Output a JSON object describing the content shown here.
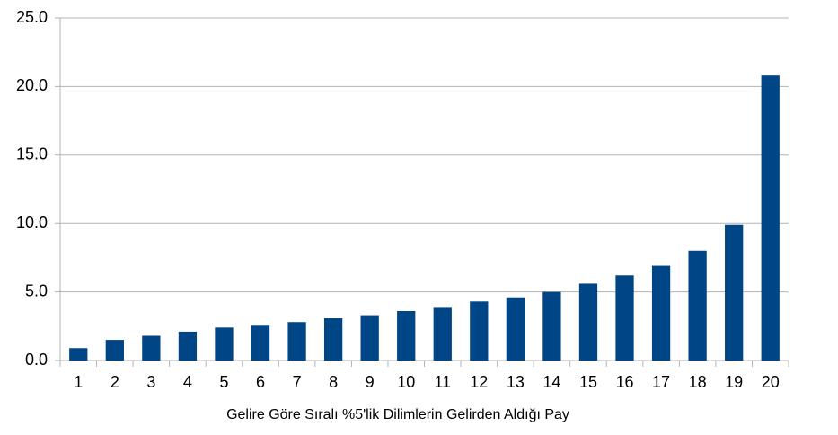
{
  "chart_data": {
    "type": "bar",
    "x_label": "Gelire Göre Sıralı %5'lik Dilimlerin Gelirden Aldığı Pay",
    "categories": [
      "1",
      "2",
      "3",
      "4",
      "5",
      "6",
      "7",
      "8",
      "9",
      "10",
      "11",
      "12",
      "13",
      "14",
      "15",
      "16",
      "17",
      "18",
      "19",
      "20"
    ],
    "values": [
      0.9,
      1.5,
      1.8,
      2.1,
      2.4,
      2.6,
      2.8,
      3.1,
      3.3,
      3.6,
      3.9,
      4.3,
      4.6,
      5.0,
      5.6,
      6.2,
      6.9,
      8.0,
      9.9,
      20.8
    ],
    "color": "#004586",
    "ylim": [
      0,
      25
    ],
    "yticks": [
      {
        "value": 0,
        "label": "0.0"
      },
      {
        "value": 5,
        "label": "5.0"
      },
      {
        "value": 10,
        "label": "10.0"
      },
      {
        "value": 15,
        "label": "15.0"
      },
      {
        "value": 20,
        "label": "20.0"
      },
      {
        "value": 25,
        "label": "25.0"
      }
    ],
    "grid": true
  }
}
